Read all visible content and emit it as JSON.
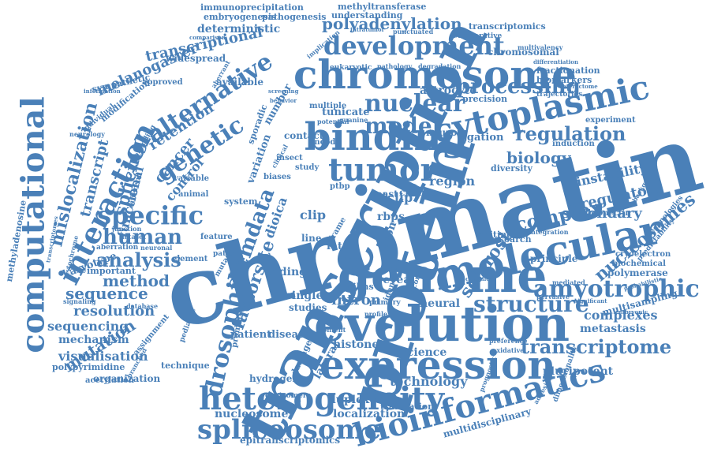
{
  "palette": {
    "word_color": "#4a80b8",
    "background": "#ffffff"
  },
  "words": [
    "chromatin",
    "protein",
    "transcription",
    "genome",
    "evolution",
    "expression",
    "molecular",
    "chromosome",
    "binding",
    "computational",
    "cytoplasmic",
    "heterogeneity",
    "bioinformatics",
    "spliceosome",
    "tumor",
    "development",
    "interaction",
    "amyotrophic",
    "specific",
    "drosophila",
    "alternative",
    "nuclear",
    "human",
    "model",
    "genetic",
    "processing",
    "analysis",
    "sequence",
    "method",
    "regulation",
    "complex",
    "structure",
    "transcriptome",
    "mislocalization",
    "splicing",
    "stemdata",
    "nucleosomes",
    "factorsite",
    "sclerosis",
    "polyadenylation",
    "resolution",
    "sequencing",
    "mutation",
    "transcriptional",
    "melanogaster",
    "retention",
    "technology",
    "histone",
    "localization",
    "duplexes",
    "nucleosome",
    "cancer",
    "dioica",
    "transcript",
    "intron",
    "reveal",
    "neural",
    "astrocyte",
    "biology",
    "functional",
    "clip",
    "iclip",
    "region",
    "secondary",
    "regulatory",
    "instability",
    "visualisation",
    "mechanism",
    "pluripotent",
    "science",
    "metastasis",
    "complexes",
    "lateral",
    "coding",
    "single",
    "patient",
    "disease",
    "hydrogen",
    "polypyrimidine",
    "acetylation",
    "organization",
    "epitranscriptomics",
    "multidisciplinary",
    "immunoprecipitation",
    "methyltransferase",
    "embryogenesis",
    "pathogenesis",
    "understanding",
    "deterministic",
    "widespread",
    "transcriptomics",
    "comparative",
    "chromosomal",
    "multivalency",
    "differentiation",
    "fractionation",
    "biomarkers",
    "interactome",
    "trajectories",
    "precision",
    "experiment",
    "induction",
    "diversity",
    "neuron",
    "ligation",
    "tunicate",
    "variation",
    "editing",
    "research",
    "principle",
    "fibronectin",
    "background",
    "polymerase",
    "cryoelectron",
    "multisampling",
    "embryonic",
    "probabilistic",
    "technique",
    "centromere",
    "damage",
    "translation",
    "dimensionality",
    "karyotype",
    "important",
    "aberration",
    "neuronal",
    "feature",
    "variable",
    "control",
    "animal",
    "system",
    "sympathetic",
    "approved",
    "available",
    "noncoding",
    "modification",
    "individual",
    "neurology",
    "information",
    "mutant",
    "pattern",
    "studies",
    "primary",
    "profile",
    "multiple",
    "sporadic",
    "number",
    "contact",
    "potential",
    "guanine",
    "biases",
    "insect",
    "study",
    "yeast",
    "change",
    "frame",
    "rbps",
    "wilms",
    "sarcoma",
    "identify",
    "fate",
    "line",
    "element",
    "dataset",
    "junction",
    "methyladenosine",
    "transcriptomes",
    "different",
    "intratumor",
    "punctuated",
    "eukaryotic",
    "pathology",
    "degradation",
    "comparison",
    "cytochrome",
    "signaling",
    "database",
    "assignment",
    "pediatric",
    "promoter",
    "branched",
    "preference",
    "oxidative",
    "prognostic",
    "adhesion",
    "biochemical",
    "significant",
    "integration",
    "predictability",
    "technologies",
    "canonical",
    "mediated",
    "pervasive",
    "content",
    "encode",
    "clinical",
    "screening",
    "behavior",
    "aberrant",
    "implication",
    "code",
    "mrna",
    "ptbp",
    "exon"
  ]
}
